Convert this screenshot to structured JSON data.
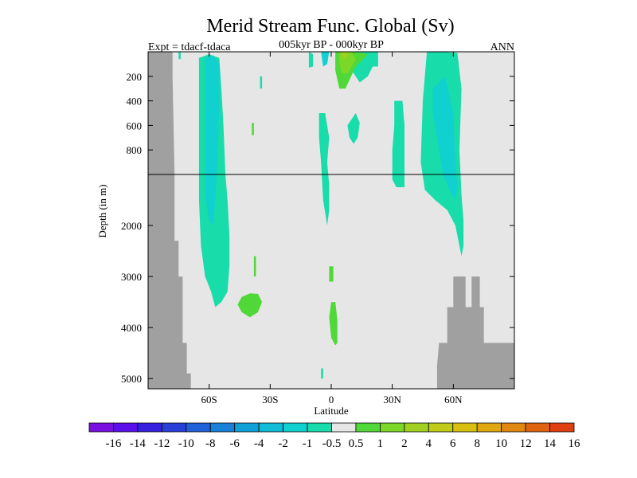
{
  "chart_data": {
    "type": "heatmap",
    "title": "Merid Stream Func. Global (Sv)",
    "left_label": "Expt = tdacf-tdaca",
    "center_label": "005kyr BP - 000kyr BP",
    "right_label": "ANN",
    "xlabel": "Latitude",
    "ylabel": "Depth (in m)",
    "xlim": [
      -90,
      90
    ],
    "ylim_upper": [
      0,
      1000
    ],
    "ylim_lower": [
      1000,
      5200
    ],
    "x_ticks": [
      {
        "value": -60,
        "label": "60S"
      },
      {
        "value": -30,
        "label": "30S"
      },
      {
        "value": 0,
        "label": "0"
      },
      {
        "value": 30,
        "label": "30N"
      },
      {
        "value": 60,
        "label": "60N"
      }
    ],
    "y_ticks_upper": [
      {
        "value": 200,
        "label": "200"
      },
      {
        "value": 400,
        "label": "400"
      },
      {
        "value": 600,
        "label": "600"
      },
      {
        "value": 800,
        "label": "800"
      }
    ],
    "y_ticks_lower": [
      {
        "value": 2000,
        "label": "2000"
      },
      {
        "value": 3000,
        "label": "3000"
      },
      {
        "value": 4000,
        "label": "4000"
      },
      {
        "value": 5000,
        "label": "5000"
      }
    ],
    "colorbar": {
      "colors": [
        "#7a10e0",
        "#5a10e8",
        "#3820e0",
        "#2840d8",
        "#2060d8",
        "#1880d8",
        "#10a0d8",
        "#10bcd8",
        "#10d0d0",
        "#18dcaa",
        "#e6e6e6",
        "#50d838",
        "#7cd828",
        "#a0d020",
        "#c0cc18",
        "#d8c010",
        "#e0a810",
        "#e08810",
        "#e06410",
        "#e04010"
      ],
      "labels": [
        "-16",
        "-14",
        "-12",
        "-10",
        "-8",
        "-6",
        "-4",
        "-2",
        "-1",
        "-0.5",
        "0.5",
        "1",
        "2",
        "4",
        "6",
        "8",
        "10",
        "12",
        "14",
        "16"
      ]
    },
    "background_color": "#e6e6e6",
    "land_color": "#a0a0a0",
    "regions": [
      {
        "color": "#18dcaa",
        "points": [
          [
            -65,
            50
          ],
          [
            -60,
            20
          ],
          [
            -55,
            50
          ],
          [
            -54,
            300
          ],
          [
            -53,
            600
          ],
          [
            -52,
            1000
          ],
          [
            -51,
            1500
          ],
          [
            -50,
            2200
          ],
          [
            -50,
            2800
          ],
          [
            -51,
            3300
          ],
          [
            -54,
            3500
          ],
          [
            -57,
            3600
          ],
          [
            -59,
            3300
          ],
          [
            -62,
            3000
          ],
          [
            -64,
            2400
          ],
          [
            -65,
            1500
          ],
          [
            -65,
            600
          ]
        ]
      },
      {
        "color": "#10d0d0",
        "points": [
          [
            -62,
            50
          ],
          [
            -58,
            30
          ],
          [
            -55,
            100
          ],
          [
            -55,
            400
          ],
          [
            -56,
            900
          ],
          [
            -57,
            1500
          ],
          [
            -58,
            2000
          ],
          [
            -60,
            1900
          ],
          [
            -62,
            1400
          ],
          [
            -62,
            700
          ],
          [
            -62,
            300
          ]
        ]
      },
      {
        "color": "#18dcaa",
        "points": [
          [
            47,
            0
          ],
          [
            55,
            -10
          ],
          [
            62,
            10
          ],
          [
            64,
            300
          ],
          [
            63,
            800
          ],
          [
            64,
            1400
          ],
          [
            65,
            1900
          ],
          [
            65,
            2400
          ],
          [
            64,
            2600
          ],
          [
            61,
            2000
          ],
          [
            57,
            1700
          ],
          [
            51,
            1500
          ],
          [
            46,
            1300
          ],
          [
            44,
            900
          ],
          [
            45,
            400
          ]
        ]
      },
      {
        "color": "#10d0d0",
        "points": [
          [
            50,
            300
          ],
          [
            56,
            200
          ],
          [
            60,
            500
          ],
          [
            61,
            900
          ],
          [
            62,
            1250
          ],
          [
            61,
            1500
          ],
          [
            58,
            1300
          ],
          [
            55,
            1000
          ],
          [
            52,
            700
          ],
          [
            50,
            500
          ]
        ]
      },
      {
        "color": "#18dcaa",
        "points": [
          [
            31,
            400
          ],
          [
            35,
            400
          ],
          [
            36,
            600
          ],
          [
            36,
            1000
          ],
          [
            36,
            1250
          ],
          [
            32,
            1250
          ],
          [
            30,
            1100
          ],
          [
            30,
            800
          ],
          [
            31,
            600
          ]
        ]
      },
      {
        "color": "#18dcaa",
        "points": [
          [
            8,
            600
          ],
          [
            12,
            500
          ],
          [
            14,
            580
          ],
          [
            13,
            700
          ],
          [
            11,
            750
          ],
          [
            9,
            700
          ]
        ]
      },
      {
        "color": "#18dcaa",
        "points": [
          [
            -6,
            500
          ],
          [
            -3,
            500
          ],
          [
            -1,
            700
          ],
          [
            -2,
            900
          ],
          [
            -1,
            1200
          ],
          [
            -1,
            1700
          ],
          [
            -2,
            2000
          ],
          [
            -4,
            1500
          ],
          [
            -5,
            900
          ],
          [
            -6,
            700
          ]
        ]
      },
      {
        "color": "#18dcaa",
        "points": [
          [
            10,
            -10
          ],
          [
            20,
            -10
          ],
          [
            21,
            100
          ],
          [
            18,
            200
          ],
          [
            14,
            250
          ],
          [
            10,
            150
          ]
        ]
      },
      {
        "color": "#18dcaa",
        "points": [
          [
            -11,
            0
          ],
          [
            -9,
            20
          ],
          [
            -9,
            120
          ],
          [
            -11,
            130
          ]
        ]
      },
      {
        "color": "#10d0d0",
        "points": [
          [
            -5,
            -10
          ],
          [
            -1,
            -10
          ],
          [
            -2,
            100
          ],
          [
            -4,
            120
          ]
        ]
      },
      {
        "color": "#18dcaa",
        "points": [
          [
            -35,
            200
          ],
          [
            -34,
            200
          ],
          [
            -34,
            300
          ],
          [
            -35,
            300
          ]
        ]
      },
      {
        "color": "#18dcaa",
        "points": [
          [
            18,
            0
          ],
          [
            23,
            0
          ],
          [
            23,
            120
          ],
          [
            19,
            120
          ]
        ]
      },
      {
        "color": "#18dcaa",
        "points": [
          [
            -75,
            0
          ],
          [
            -74,
            0
          ],
          [
            -74,
            60
          ],
          [
            -75,
            60
          ]
        ]
      },
      {
        "color": "#50d838",
        "points": [
          [
            2,
            -10
          ],
          [
            12,
            -10
          ],
          [
            18,
            20
          ],
          [
            12,
            120
          ],
          [
            7,
            300
          ],
          [
            4,
            300
          ],
          [
            2,
            150
          ]
        ]
      },
      {
        "color": "#7cd828",
        "points": [
          [
            4,
            -10
          ],
          [
            10,
            -10
          ],
          [
            12,
            60
          ],
          [
            8,
            180
          ],
          [
            5,
            170
          ],
          [
            4,
            80
          ]
        ]
      },
      {
        "color": "#a0d020",
        "points": [
          [
            5,
            0
          ],
          [
            8,
            0
          ],
          [
            8,
            40
          ],
          [
            6,
            60
          ]
        ]
      },
      {
        "color": "#50d838",
        "points": [
          [
            -44,
            3400
          ],
          [
            -40,
            3330
          ],
          [
            -36,
            3340
          ],
          [
            -34,
            3500
          ],
          [
            -36,
            3700
          ],
          [
            -40,
            3800
          ],
          [
            -44,
            3700
          ],
          [
            -46,
            3550
          ]
        ]
      },
      {
        "color": "#50d838",
        "points": [
          [
            0,
            3500
          ],
          [
            2,
            3500
          ],
          [
            3,
            3850
          ],
          [
            3,
            4300
          ],
          [
            2,
            4350
          ],
          [
            0,
            4200
          ],
          [
            -1,
            3800
          ]
        ]
      },
      {
        "color": "#50d838",
        "points": [
          [
            -39,
            580
          ],
          [
            -38,
            580
          ],
          [
            -38,
            680
          ],
          [
            -39,
            680
          ]
        ]
      },
      {
        "color": "#50d838",
        "points": [
          [
            -38,
            2600
          ],
          [
            -37,
            2600
          ],
          [
            -37,
            3000
          ],
          [
            -38,
            3000
          ]
        ]
      },
      {
        "color": "#50d838",
        "points": [
          [
            -1,
            2800
          ],
          [
            1,
            2800
          ],
          [
            1,
            3100
          ],
          [
            -1,
            3100
          ]
        ]
      },
      {
        "color": "#18dcaa",
        "points": [
          [
            -5,
            4800
          ],
          [
            -4,
            4800
          ],
          [
            -4,
            5000
          ],
          [
            -5,
            5000
          ]
        ]
      }
    ],
    "land": [
      {
        "points": [
          [
            -90,
            0
          ],
          [
            -78,
            0
          ],
          [
            -78,
            200
          ],
          [
            -77,
            1000
          ],
          [
            -77,
            2300
          ],
          [
            -75,
            2300
          ],
          [
            -75,
            3000
          ],
          [
            -73,
            3000
          ],
          [
            -73,
            4300
          ],
          [
            -71,
            4300
          ],
          [
            -71,
            4900
          ],
          [
            -69,
            4900
          ],
          [
            -69,
            5200
          ],
          [
            -90,
            5200
          ]
        ]
      },
      {
        "points": [
          [
            52,
            5200
          ],
          [
            52,
            4750
          ],
          [
            53,
            4300
          ],
          [
            57,
            4300
          ],
          [
            57,
            3600
          ],
          [
            60,
            3600
          ],
          [
            60,
            3000
          ],
          [
            66,
            3000
          ],
          [
            66,
            3600
          ],
          [
            69,
            3600
          ],
          [
            69,
            3000
          ],
          [
            73,
            3000
          ],
          [
            73,
            3600
          ],
          [
            75,
            3600
          ],
          [
            75,
            4300
          ],
          [
            90,
            4300
          ],
          [
            90,
            5200
          ]
        ]
      }
    ]
  }
}
